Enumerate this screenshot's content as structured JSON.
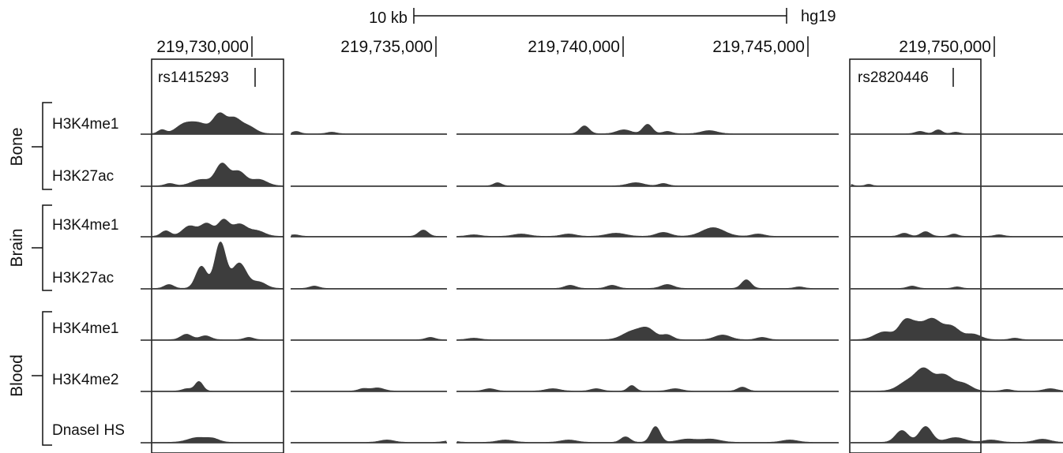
{
  "header": {
    "scale_label": "10 kb",
    "assembly": "hg19"
  },
  "ruler": {
    "positions": [
      "219,730,000",
      "219,735,000",
      "219,740,000",
      "219,745,000",
      "219,750,000"
    ]
  },
  "highlights": [
    {
      "snp": "rs1415293"
    },
    {
      "snp": "rs2820446"
    }
  ],
  "groups": [
    {
      "name": "Bone",
      "tracks": [
        "H3K4me1",
        "H3K27ac"
      ]
    },
    {
      "name": "Brain",
      "tracks": [
        "H3K4me1",
        "H3K27ac"
      ]
    },
    {
      "name": "Blood",
      "tracks": [
        "H3K4me1",
        "H3K4me2",
        "DnaseI HS"
      ]
    }
  ],
  "tracks": [
    {
      "label": "H3K4me1",
      "group": "Bone",
      "signal": {
        "segments": [
          [
            195,
            564
          ]
        ],
        "peaks": [
          [
            205,
            5,
            5
          ],
          [
            232,
            10,
            10
          ],
          [
            252,
            13,
            12
          ],
          [
            278,
            24,
            8
          ],
          [
            296,
            17,
            8
          ],
          [
            313,
            10,
            10
          ],
          [
            375,
            3,
            5
          ],
          [
            420,
            2,
            6
          ],
          [
            740,
            10,
            6
          ],
          [
            790,
            5,
            9
          ],
          [
            820,
            12,
            6
          ],
          [
            845,
            3,
            6
          ],
          [
            898,
            4,
            10
          ],
          [
            1165,
            3,
            6
          ],
          [
            1188,
            5,
            5
          ],
          [
            1210,
            2,
            5
          ]
        ]
      }
    },
    {
      "label": "H3K27ac",
      "group": "Bone",
      "signal": {
        "segments": [
          [
            195,
            564
          ]
        ],
        "peaks": [
          [
            215,
            3,
            6
          ],
          [
            255,
            8,
            12
          ],
          [
            281,
            27,
            8
          ],
          [
            302,
            18,
            9
          ],
          [
            328,
            8,
            10
          ],
          [
            630,
            4,
            5
          ],
          [
            805,
            4,
            10
          ],
          [
            840,
            3,
            6
          ],
          [
            1077,
            2,
            3
          ],
          [
            1100,
            2,
            4
          ]
        ]
      }
    },
    {
      "label": "H3K4me1",
      "group": "Brain",
      "signal": {
        "segments": [
          [
            195,
            564
          ]
        ],
        "peaks": [
          [
            210,
            7,
            6
          ],
          [
            240,
            13,
            9
          ],
          [
            262,
            16,
            8
          ],
          [
            283,
            20,
            7
          ],
          [
            303,
            15,
            9
          ],
          [
            325,
            7,
            10
          ],
          [
            373,
            2,
            6
          ],
          [
            536,
            8,
            6
          ],
          [
            600,
            2,
            8
          ],
          [
            660,
            3,
            10
          ],
          [
            720,
            3,
            9
          ],
          [
            780,
            4,
            12
          ],
          [
            840,
            5,
            9
          ],
          [
            903,
            11,
            14
          ],
          [
            960,
            3,
            8
          ],
          [
            1145,
            4,
            6
          ],
          [
            1172,
            6,
            6
          ],
          [
            1208,
            3,
            5
          ],
          [
            1265,
            2,
            6
          ]
        ]
      }
    },
    {
      "label": "H3K27ac",
      "group": "Brain",
      "signal": {
        "segments": [
          [
            195,
            564
          ]
        ],
        "peaks": [
          [
            214,
            5,
            6
          ],
          [
            255,
            28,
            7
          ],
          [
            279,
            58,
            7
          ],
          [
            303,
            32,
            9
          ],
          [
            328,
            8,
            9
          ],
          [
            398,
            3,
            6
          ],
          [
            722,
            4,
            7
          ],
          [
            775,
            4,
            7
          ],
          [
            845,
            5,
            8
          ],
          [
            945,
            11,
            6
          ],
          [
            1012,
            2,
            6
          ],
          [
            1155,
            3,
            6
          ],
          [
            1212,
            2,
            5
          ]
        ]
      }
    },
    {
      "label": "H3K4me1",
      "group": "Blood",
      "signal": {
        "segments": [
          [
            195,
            564
          ]
        ],
        "peaks": [
          [
            236,
            7,
            7
          ],
          [
            260,
            5,
            7
          ],
          [
            315,
            3,
            6
          ],
          [
            545,
            3,
            6
          ],
          [
            600,
            2,
            8
          ],
          [
            800,
            10,
            12
          ],
          [
            820,
            13,
            10
          ],
          [
            845,
            6,
            7
          ],
          [
            915,
            6,
            10
          ],
          [
            965,
            3,
            7
          ],
          [
            1120,
            10,
            12
          ],
          [
            1146,
            22,
            8
          ],
          [
            1160,
            14,
            8
          ],
          [
            1180,
            26,
            11
          ],
          [
            1205,
            16,
            10
          ],
          [
            1232,
            7,
            10
          ],
          [
            1285,
            2,
            6
          ]
        ]
      }
    },
    {
      "label": "H3K4me2",
      "group": "Blood",
      "signal": {
        "segments": [
          [
            195,
            564
          ]
        ],
        "peaks": [
          [
            252,
            12,
            5
          ],
          [
            237,
            3,
            6
          ],
          [
            460,
            3,
            6
          ],
          [
            478,
            4,
            8
          ],
          [
            620,
            3,
            7
          ],
          [
            700,
            3,
            9
          ],
          [
            755,
            3,
            7
          ],
          [
            800,
            7,
            5
          ],
          [
            855,
            3,
            8
          ],
          [
            940,
            5,
            6
          ],
          [
            1150,
            12,
            12
          ],
          [
            1170,
            25,
            10
          ],
          [
            1195,
            20,
            11
          ],
          [
            1220,
            9,
            10
          ],
          [
            1275,
            2,
            6
          ],
          [
            1330,
            3,
            8
          ]
        ]
      }
    },
    {
      "label": "DnaseI HS",
      "group": "Blood",
      "signal": {
        "segments": [
          [
            195,
            564
          ]
        ],
        "peaks": [
          [
            250,
            6,
            12
          ],
          [
            270,
            4,
            8
          ],
          [
            490,
            3,
            9
          ],
          [
            570,
            2,
            8
          ],
          [
            640,
            3,
            10
          ],
          [
            720,
            3,
            10
          ],
          [
            792,
            7,
            6
          ],
          [
            830,
            20,
            6
          ],
          [
            870,
            4,
            12
          ],
          [
            900,
            4,
            12
          ],
          [
            1000,
            3,
            10
          ],
          [
            1142,
            15,
            8
          ],
          [
            1172,
            20,
            8
          ],
          [
            1210,
            6,
            12
          ],
          [
            1255,
            3,
            10
          ],
          [
            1320,
            4,
            10
          ]
        ]
      }
    }
  ],
  "colors": {
    "signal": "#3d3d3d",
    "frame": "#111111"
  }
}
